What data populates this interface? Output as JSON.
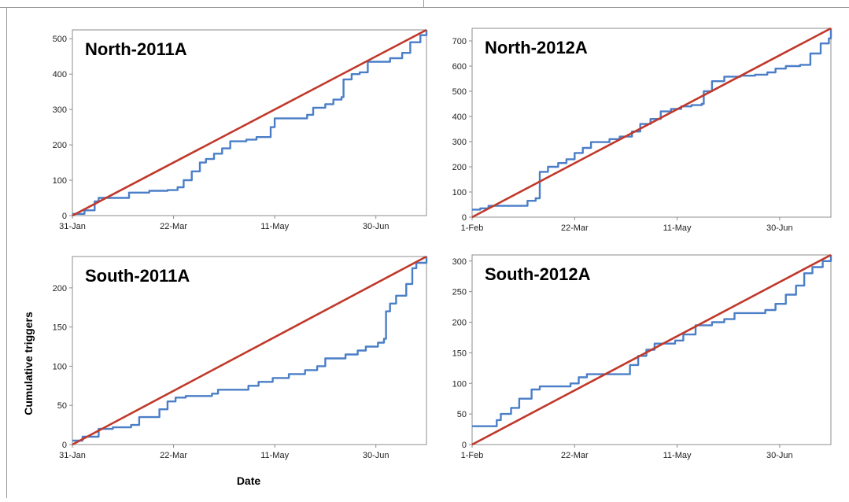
{
  "figure": {
    "ylabel": "Cumulative triggers",
    "xlabel": "Date"
  },
  "chart_data": [
    {
      "type": "line",
      "title": "North-2011A",
      "xlabel": "",
      "ylabel": "",
      "xlim": [
        "2011-01-31",
        "2011-07-25"
      ],
      "ylim": [
        0,
        525
      ],
      "x_ticks": [
        "31-Jan",
        "22-Mar",
        "11-May",
        "30-Jun"
      ],
      "y_ticks": [
        0,
        100,
        200,
        300,
        400,
        500
      ],
      "grid": false,
      "series": [
        {
          "color": "#4a7ec7",
          "step": true,
          "points": [
            [
              "2011-01-31",
              5
            ],
            [
              "2011-02-06",
              15
            ],
            [
              "2011-02-11",
              40
            ],
            [
              "2011-02-13",
              50
            ],
            [
              "2011-02-28",
              65
            ],
            [
              "2011-03-10",
              70
            ],
            [
              "2011-03-19",
              72
            ],
            [
              "2011-03-24",
              80
            ],
            [
              "2011-03-27",
              100
            ],
            [
              "2011-03-31",
              125
            ],
            [
              "2011-04-04",
              150
            ],
            [
              "2011-04-07",
              160
            ],
            [
              "2011-04-11",
              175
            ],
            [
              "2011-04-15",
              190
            ],
            [
              "2011-04-19",
              210
            ],
            [
              "2011-04-27",
              215
            ],
            [
              "2011-05-02",
              222
            ],
            [
              "2011-05-09",
              250
            ],
            [
              "2011-05-11",
              275
            ],
            [
              "2011-05-27",
              285
            ],
            [
              "2011-05-30",
              305
            ],
            [
              "2011-06-05",
              315
            ],
            [
              "2011-06-09",
              328
            ],
            [
              "2011-06-13",
              335
            ],
            [
              "2011-06-14",
              385
            ],
            [
              "2011-06-18",
              400
            ],
            [
              "2011-06-22",
              405
            ],
            [
              "2011-06-26",
              435
            ],
            [
              "2011-07-07",
              445
            ],
            [
              "2011-07-13",
              460
            ],
            [
              "2011-07-17",
              490
            ],
            [
              "2011-07-22",
              510
            ],
            [
              "2011-07-25",
              525
            ]
          ]
        },
        {
          "color": "#c0392b",
          "step": false,
          "points": [
            [
              "2011-01-31",
              0
            ],
            [
              "2011-07-25",
              525
            ]
          ]
        }
      ]
    },
    {
      "type": "line",
      "title": "North-2012A",
      "xlabel": "",
      "ylabel": "",
      "xlim": [
        "2012-02-01",
        "2012-07-25"
      ],
      "ylim": [
        0,
        750
      ],
      "x_ticks": [
        "1-Feb",
        "22-Mar",
        "11-May",
        "30-Jun"
      ],
      "y_ticks": [
        0,
        100,
        200,
        300,
        400,
        500,
        600,
        700
      ],
      "grid": false,
      "series": [
        {
          "color": "#4a7ec7",
          "step": true,
          "points": [
            [
              "2012-02-01",
              30
            ],
            [
              "2012-02-05",
              35
            ],
            [
              "2012-02-09",
              45
            ],
            [
              "2012-02-28",
              65
            ],
            [
              "2012-03-03",
              75
            ],
            [
              "2012-03-05",
              180
            ],
            [
              "2012-03-09",
              200
            ],
            [
              "2012-03-14",
              215
            ],
            [
              "2012-03-18",
              230
            ],
            [
              "2012-03-22",
              255
            ],
            [
              "2012-03-26",
              275
            ],
            [
              "2012-03-30",
              298
            ],
            [
              "2012-04-08",
              310
            ],
            [
              "2012-04-13",
              320
            ],
            [
              "2012-04-19",
              340
            ],
            [
              "2012-04-23",
              370
            ],
            [
              "2012-04-28",
              390
            ],
            [
              "2012-05-03",
              420
            ],
            [
              "2012-05-08",
              430
            ],
            [
              "2012-05-13",
              440
            ],
            [
              "2012-05-18",
              445
            ],
            [
              "2012-05-23",
              450
            ],
            [
              "2012-05-24",
              500
            ],
            [
              "2012-05-28",
              540
            ],
            [
              "2012-06-03",
              558
            ],
            [
              "2012-06-11",
              562
            ],
            [
              "2012-06-18",
              566
            ],
            [
              "2012-06-24",
              575
            ],
            [
              "2012-06-28",
              590
            ],
            [
              "2012-07-03",
              600
            ],
            [
              "2012-07-10",
              605
            ],
            [
              "2012-07-15",
              650
            ],
            [
              "2012-07-20",
              690
            ],
            [
              "2012-07-24",
              710
            ],
            [
              "2012-07-25",
              750
            ]
          ]
        },
        {
          "color": "#c0392b",
          "step": false,
          "points": [
            [
              "2012-02-01",
              0
            ],
            [
              "2012-07-25",
              750
            ]
          ]
        }
      ]
    },
    {
      "type": "line",
      "title": "South-2011A",
      "xlabel": "",
      "ylabel": "",
      "xlim": [
        "2011-01-31",
        "2011-07-25"
      ],
      "ylim": [
        0,
        240
      ],
      "x_ticks": [
        "31-Jan",
        "22-Mar",
        "11-May",
        "30-Jun"
      ],
      "y_ticks": [
        0,
        50,
        100,
        150,
        200
      ],
      "grid": false,
      "series": [
        {
          "color": "#4a7ec7",
          "step": true,
          "points": [
            [
              "2011-01-31",
              5
            ],
            [
              "2011-02-05",
              10
            ],
            [
              "2011-02-13",
              20
            ],
            [
              "2011-02-20",
              22
            ],
            [
              "2011-03-01",
              25
            ],
            [
              "2011-03-05",
              35
            ],
            [
              "2011-03-15",
              45
            ],
            [
              "2011-03-19",
              55
            ],
            [
              "2011-03-23",
              60
            ],
            [
              "2011-03-28",
              62
            ],
            [
              "2011-04-10",
              65
            ],
            [
              "2011-04-13",
              70
            ],
            [
              "2011-04-28",
              75
            ],
            [
              "2011-05-03",
              80
            ],
            [
              "2011-05-10",
              85
            ],
            [
              "2011-05-18",
              90
            ],
            [
              "2011-05-26",
              95
            ],
            [
              "2011-06-01",
              100
            ],
            [
              "2011-06-05",
              110
            ],
            [
              "2011-06-15",
              115
            ],
            [
              "2011-06-21",
              120
            ],
            [
              "2011-06-25",
              125
            ],
            [
              "2011-07-01",
              130
            ],
            [
              "2011-07-04",
              135
            ],
            [
              "2011-07-05",
              170
            ],
            [
              "2011-07-07",
              180
            ],
            [
              "2011-07-10",
              190
            ],
            [
              "2011-07-15",
              205
            ],
            [
              "2011-07-18",
              225
            ],
            [
              "2011-07-20",
              232
            ],
            [
              "2011-07-25",
              240
            ]
          ]
        },
        {
          "color": "#c0392b",
          "step": false,
          "points": [
            [
              "2011-01-31",
              0
            ],
            [
              "2011-07-25",
              240
            ]
          ]
        }
      ]
    },
    {
      "type": "line",
      "title": "South-2012A",
      "xlabel": "",
      "ylabel": "",
      "xlim": [
        "2012-02-01",
        "2012-07-25"
      ],
      "ylim": [
        0,
        310
      ],
      "x_ticks": [
        "1-Feb",
        "22-Mar",
        "11-May",
        "30-Jun"
      ],
      "y_ticks": [
        0,
        50,
        100,
        150,
        200,
        250,
        300
      ],
      "grid": false,
      "series": [
        {
          "color": "#4a7ec7",
          "step": true,
          "points": [
            [
              "2012-02-01",
              30
            ],
            [
              "2012-02-13",
              40
            ],
            [
              "2012-02-15",
              50
            ],
            [
              "2012-02-20",
              60
            ],
            [
              "2012-02-24",
              75
            ],
            [
              "2012-03-01",
              90
            ],
            [
              "2012-03-05",
              95
            ],
            [
              "2012-03-20",
              100
            ],
            [
              "2012-03-24",
              110
            ],
            [
              "2012-03-28",
              115
            ],
            [
              "2012-04-18",
              130
            ],
            [
              "2012-04-22",
              145
            ],
            [
              "2012-04-26",
              155
            ],
            [
              "2012-04-30",
              165
            ],
            [
              "2012-05-10",
              170
            ],
            [
              "2012-05-14",
              180
            ],
            [
              "2012-05-20",
              195
            ],
            [
              "2012-05-28",
              200
            ],
            [
              "2012-06-03",
              205
            ],
            [
              "2012-06-08",
              215
            ],
            [
              "2012-06-23",
              220
            ],
            [
              "2012-06-28",
              230
            ],
            [
              "2012-07-03",
              245
            ],
            [
              "2012-07-08",
              260
            ],
            [
              "2012-07-12",
              280
            ],
            [
              "2012-07-16",
              290
            ],
            [
              "2012-07-21",
              300
            ],
            [
              "2012-07-25",
              310
            ]
          ]
        },
        {
          "color": "#c0392b",
          "step": false,
          "points": [
            [
              "2012-02-01",
              0
            ],
            [
              "2012-07-25",
              310
            ]
          ]
        }
      ]
    }
  ]
}
